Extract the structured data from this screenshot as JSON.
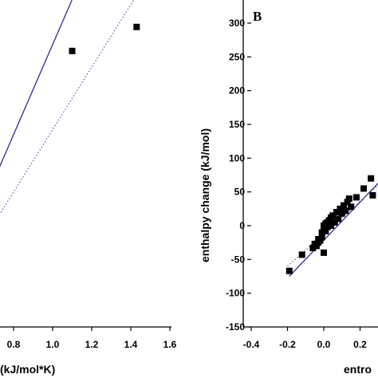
{
  "chart_data": [
    {
      "type": "scatter",
      "panel": "A",
      "title": "",
      "xlabel": "(kJ/mol*K)",
      "ylabel": "",
      "xlim": [
        0.7,
        1.6
      ],
      "ylim": [
        0,
        330
      ],
      "x_ticks": [
        0.8,
        1.0,
        1.2,
        1.4,
        1.6
      ],
      "x_tick_labels": [
        "0.8",
        "1.0",
        "1.2",
        "1.4",
        "1.6"
      ],
      "series": [
        {
          "kind": "points",
          "marker": "square",
          "color": "#000000",
          "points": [
            [
              1.1,
              253
            ],
            [
              1.43,
              275
            ]
          ]
        },
        {
          "kind": "line",
          "style": "solid",
          "color": "#2a2aa0",
          "points": [
            [
              0.7,
              135
            ],
            [
              1.16,
              325
            ]
          ]
        },
        {
          "kind": "line",
          "style": "dotted",
          "color": "#4b4bb8",
          "points": [
            [
              0.7,
              95
            ],
            [
              1.43,
              304
            ]
          ]
        }
      ]
    },
    {
      "type": "scatter",
      "panel": "B",
      "panel_label": "B",
      "title": "",
      "xlabel": "entro",
      "ylabel": "enthalpy change (kJ/mol)",
      "xlim": [
        -0.4,
        0.3
      ],
      "ylim": [
        -150,
        325
      ],
      "x_ticks": [
        -0.4,
        -0.2,
        0.0,
        0.2
      ],
      "x_tick_labels": [
        "-0.4",
        "-0.2",
        "0.0",
        "0.2"
      ],
      "y_ticks": [
        -150,
        -100,
        -50,
        0,
        50,
        100,
        150,
        200,
        250,
        300
      ],
      "y_tick_labels": [
        "-150",
        "-100",
        "-50",
        "0",
        "50",
        "100",
        "150",
        "200",
        "250",
        "300"
      ],
      "series": [
        {
          "kind": "points",
          "marker": "square",
          "color": "#000000",
          "points": [
            [
              -0.19,
              -67
            ],
            [
              -0.12,
              -43
            ],
            [
              -0.06,
              -33
            ],
            [
              -0.05,
              -27
            ],
            [
              -0.04,
              -30
            ],
            [
              -0.03,
              -25
            ],
            [
              -0.03,
              -20
            ],
            [
              -0.02,
              -22
            ],
            [
              -0.01,
              -17
            ],
            [
              -0.01,
              -10
            ],
            [
              0.0,
              -5
            ],
            [
              0.0,
              0
            ],
            [
              0.01,
              -8
            ],
            [
              0.01,
              3
            ],
            [
              0.02,
              -2
            ],
            [
              0.02,
              5
            ],
            [
              0.03,
              8
            ],
            [
              0.04,
              0
            ],
            [
              0.04,
              12
            ],
            [
              0.05,
              15
            ],
            [
              0.06,
              5
            ],
            [
              0.07,
              20
            ],
            [
              0.08,
              10
            ],
            [
              0.09,
              25
            ],
            [
              0.1,
              18
            ],
            [
              0.11,
              30
            ],
            [
              0.12,
              22
            ],
            [
              0.13,
              35
            ],
            [
              0.14,
              40
            ],
            [
              0.15,
              28
            ],
            [
              0.18,
              42
            ],
            [
              0.22,
              55
            ],
            [
              0.26,
              70
            ],
            [
              0.27,
              45
            ],
            [
              0.0,
              -40
            ]
          ]
        },
        {
          "kind": "line",
          "style": "solid",
          "color": "#2a2aa0",
          "points": [
            [
              -0.19,
              -75
            ],
            [
              0.3,
              63
            ]
          ]
        },
        {
          "kind": "line",
          "style": "dotted",
          "color": "#555555",
          "points": [
            [
              -0.2,
              -60
            ],
            [
              0.3,
              60
            ]
          ]
        }
      ]
    }
  ]
}
